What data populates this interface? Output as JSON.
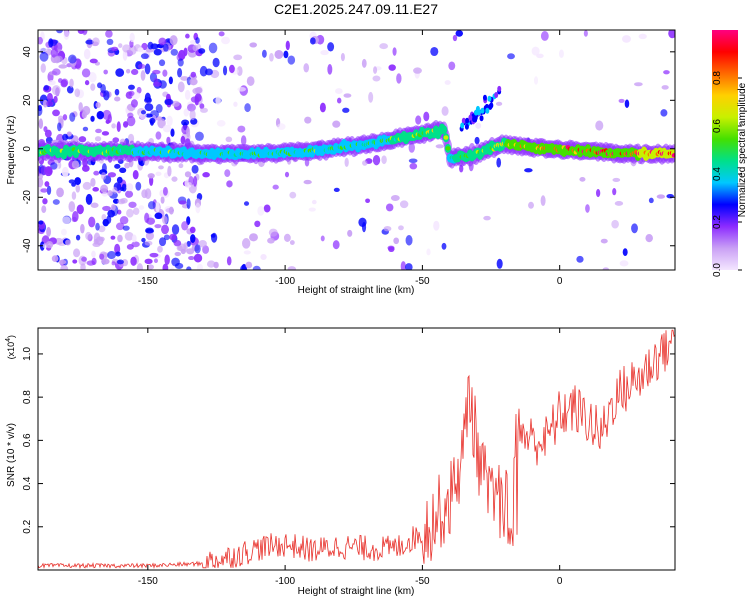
{
  "title": "C2E1.2025.247.09.11.E27",
  "chart_data": [
    {
      "type": "heatmap",
      "panel": "top",
      "xlabel": "Height of straight line (km)",
      "ylabel": "Frequency (Hz)",
      "xlim": [
        -190,
        42
      ],
      "ylim": [
        -50,
        49
      ],
      "x_ticks": [
        -150,
        -100,
        -50,
        0
      ],
      "y_ticks": [
        -40,
        -20,
        0,
        20,
        40
      ],
      "colorbar": {
        "label": "Normalized spectral amplitude",
        "range": [
          0,
          1
        ],
        "ticks": [
          "0.0",
          "0.2",
          "0.4",
          "0.6",
          "0.8"
        ],
        "tick_values": [
          0.0,
          0.2,
          0.4,
          0.6,
          0.8
        ],
        "colors": [
          "#f4e6ff",
          "#c9a0f5",
          "#8c2bff",
          "#0000ff",
          "#00c8ff",
          "#00e08a",
          "#44e000",
          "#c8f000",
          "#ffd000",
          "#ff6a00",
          "#ff0000",
          "#ff0080"
        ]
      },
      "ridge": [
        {
          "x": -180,
          "f": -1,
          "amp": 0.55
        },
        {
          "x": -150,
          "f": -1,
          "amp": 0.5
        },
        {
          "x": -130,
          "f": -2,
          "amp": 0.45
        },
        {
          "x": -110,
          "f": -2,
          "amp": 0.45
        },
        {
          "x": -90,
          "f": -1,
          "amp": 0.5
        },
        {
          "x": -70,
          "f": 2,
          "amp": 0.45
        },
        {
          "x": -55,
          "f": 5,
          "amp": 0.55
        },
        {
          "x": -42,
          "f": 8,
          "amp": 0.6
        },
        {
          "x": -40,
          "f": -4,
          "amp": 0.5
        },
        {
          "x": -30,
          "f": -2,
          "amp": 0.55
        },
        {
          "x": -20,
          "f": 2,
          "amp": 0.7
        },
        {
          "x": -5,
          "f": 0,
          "amp": 0.9
        },
        {
          "x": 10,
          "f": -1,
          "amp": 0.85
        },
        {
          "x": 25,
          "f": -2,
          "amp": 0.9
        },
        {
          "x": 40,
          "f": -2,
          "amp": 0.95
        }
      ]
    },
    {
      "type": "line",
      "panel": "bottom",
      "xlabel": "Height of straight line (km)",
      "ylabel": "SNR (10 * v/v)",
      "y_scale_label": "(x10",
      "y_scale_exponent": "4",
      "y_scale_suffix": ")",
      "xlim": [
        -190,
        42
      ],
      "ylim": [
        0.0,
        1.12
      ],
      "x_ticks": [
        -150,
        -100,
        -50,
        0
      ],
      "y_ticks": [
        0.2,
        0.4,
        0.6,
        0.8,
        1.0
      ],
      "y_tick_labels": [
        "0.2",
        "0.4",
        "0.6",
        "0.8",
        "1.0"
      ],
      "color": "#e8302a",
      "series": [
        {
          "name": "SNR",
          "x": [
            -190,
            -150,
            -130,
            -120,
            -110,
            -100,
            -90,
            -80,
            -70,
            -60,
            -50,
            -45,
            -40,
            -35,
            -33,
            -30,
            -25,
            -20,
            -18,
            -15,
            -10,
            -5,
            0,
            5,
            10,
            15,
            20,
            25,
            30,
            35,
            42
          ],
          "y": [
            0.02,
            0.02,
            0.03,
            0.06,
            0.1,
            0.12,
            0.09,
            0.11,
            0.1,
            0.1,
            0.17,
            0.25,
            0.32,
            0.55,
            0.85,
            0.55,
            0.3,
            0.35,
            0.6,
            0.65,
            0.6,
            0.6,
            0.72,
            0.75,
            0.7,
            0.62,
            0.8,
            0.85,
            0.9,
            0.98,
            1.08
          ]
        }
      ]
    }
  ]
}
